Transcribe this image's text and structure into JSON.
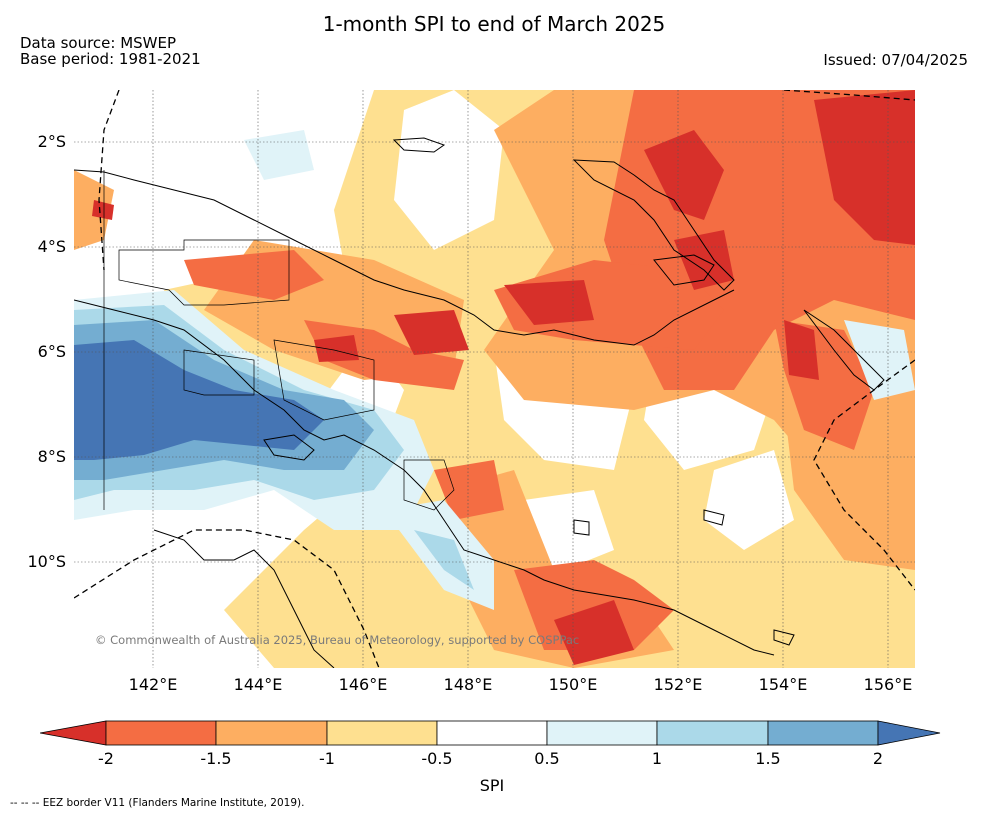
{
  "header": {
    "title": "1-month SPI to end of March 2025",
    "source_line": "Data source: MSWEP",
    "base_line": "Base period: 1981-2021",
    "issued": "Issued: 07/04/2025"
  },
  "map": {
    "lat_labels": [
      "2°S",
      "4°S",
      "6°S",
      "8°S",
      "10°S"
    ],
    "lon_labels": [
      "142°E",
      "144°E",
      "146°E",
      "148°E",
      "150°E",
      "152°E",
      "154°E",
      "156°E"
    ],
    "copyright": "© Commonwealth of Australia 2025, Bureau of Meteorology, supported by COSPPac"
  },
  "colorbar": {
    "title": "SPI",
    "ticks": [
      "-2",
      "-1.5",
      "-1",
      "-0.5",
      "0.5",
      "1",
      "1.5",
      "2"
    ],
    "colors": {
      "le_-2": "#d7302a",
      "-2_-1.5": "#f46d43",
      "-1.5_-1": "#fdae61",
      "-1_-0.5": "#fee090",
      "-0.5_0.5": "#ffffff",
      "0.5_1": "#e0f3f8",
      "1_1.5": "#abd9e9",
      "1.5_2": "#74add1",
      "ge_2": "#4575b4"
    }
  },
  "footer": {
    "eez_note": "--  --  -- EEZ border V11 (Flanders Marine Institute, 2019)."
  }
}
